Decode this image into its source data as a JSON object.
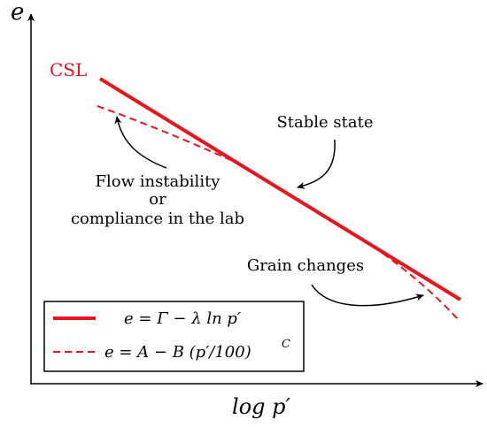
{
  "axes": {
    "y_label": "e",
    "x_label": "log p′"
  },
  "labels": {
    "csl": "CSL",
    "stable_state": "Stable state",
    "flow_line1": "Flow instability",
    "flow_line2": "or",
    "flow_line3": "compliance in the lab",
    "grain_changes": "Grain changes"
  },
  "legend": {
    "solid": "e = Γ − λ ln p′",
    "dashed_main": "e = A − B (p′/100)",
    "dashed_sup": "C"
  },
  "colors": {
    "csl_line": "#e8141e",
    "axes": "#000000"
  }
}
